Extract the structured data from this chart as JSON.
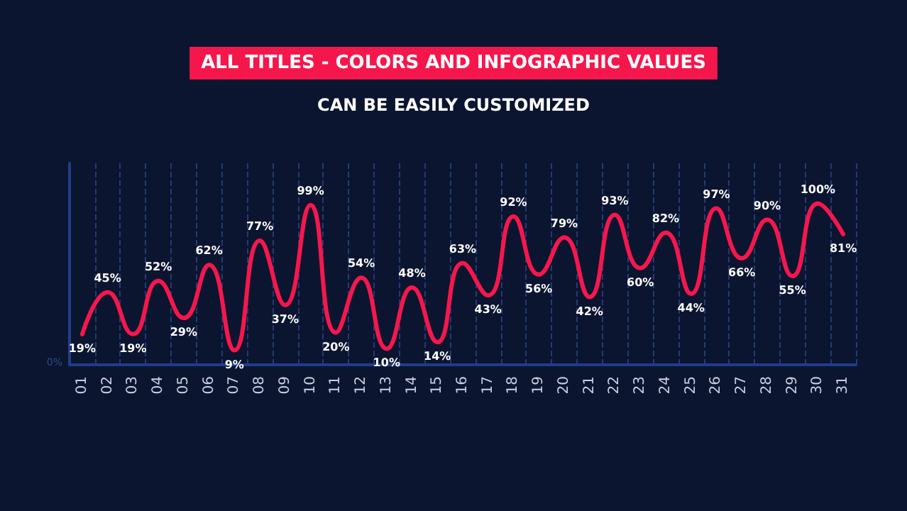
{
  "chart_data": {
    "type": "line",
    "title": "ALL TITLES - COLORS AND INFOGRAPHIC VALUES",
    "subtitle": "CAN BE EASILY CUSTOMIZED",
    "categories": [
      "01",
      "02",
      "03",
      "04",
      "05",
      "06",
      "07",
      "08",
      "09",
      "10",
      "11",
      "12",
      "13",
      "14",
      "15",
      "16",
      "17",
      "18",
      "19",
      "20",
      "21",
      "22",
      "23",
      "24",
      "25",
      "26",
      "27",
      "28",
      "29",
      "30",
      "31"
    ],
    "series": [
      {
        "color": "#f5174c",
        "values": [
          19,
          45,
          19,
          52,
          29,
          62,
          9,
          77,
          37,
          99,
          20,
          54,
          10,
          48,
          14,
          63,
          43,
          92,
          56,
          79,
          42,
          93,
          60,
          82,
          44,
          97,
          66,
          90,
          55,
          100,
          81
        ],
        "value_labels": [
          "19%",
          "45%",
          "19%",
          "52%",
          "29%",
          "62%",
          "9%",
          "77%",
          "37%",
          "99%",
          "20%",
          "54%",
          "10%",
          "48%",
          "14%",
          "63%",
          "43%",
          "92%",
          "56%",
          "79%",
          "42%",
          "93%",
          "60%",
          "82%",
          "44%",
          "97%",
          "66%",
          "90%",
          "55%",
          "100%",
          "81%"
        ]
      }
    ],
    "annotations": [
      "0%"
    ],
    "grid": "x",
    "marker": "none",
    "line_style": "solid"
  }
}
